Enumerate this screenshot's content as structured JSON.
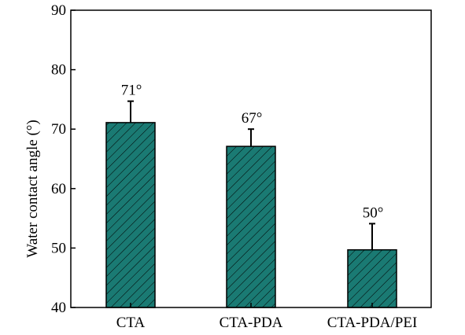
{
  "chart_data": {
    "type": "bar",
    "title": "",
    "xlabel": "",
    "ylabel": "Water contact angle (°)",
    "ylim": [
      40,
      90
    ],
    "yticks": [
      40,
      50,
      60,
      70,
      80,
      90
    ],
    "categories": [
      "CTA",
      "CTA-PDA",
      "CTA-PDA/PEI"
    ],
    "values": [
      71.1,
      67.1,
      49.7
    ],
    "errors": [
      3.6,
      2.9,
      4.4
    ],
    "data_labels": [
      "71°",
      "67°",
      "50°"
    ],
    "bar_fill": "#1a7a73",
    "bar_hatch": "diagonal",
    "grid": false,
    "legend": "none"
  }
}
